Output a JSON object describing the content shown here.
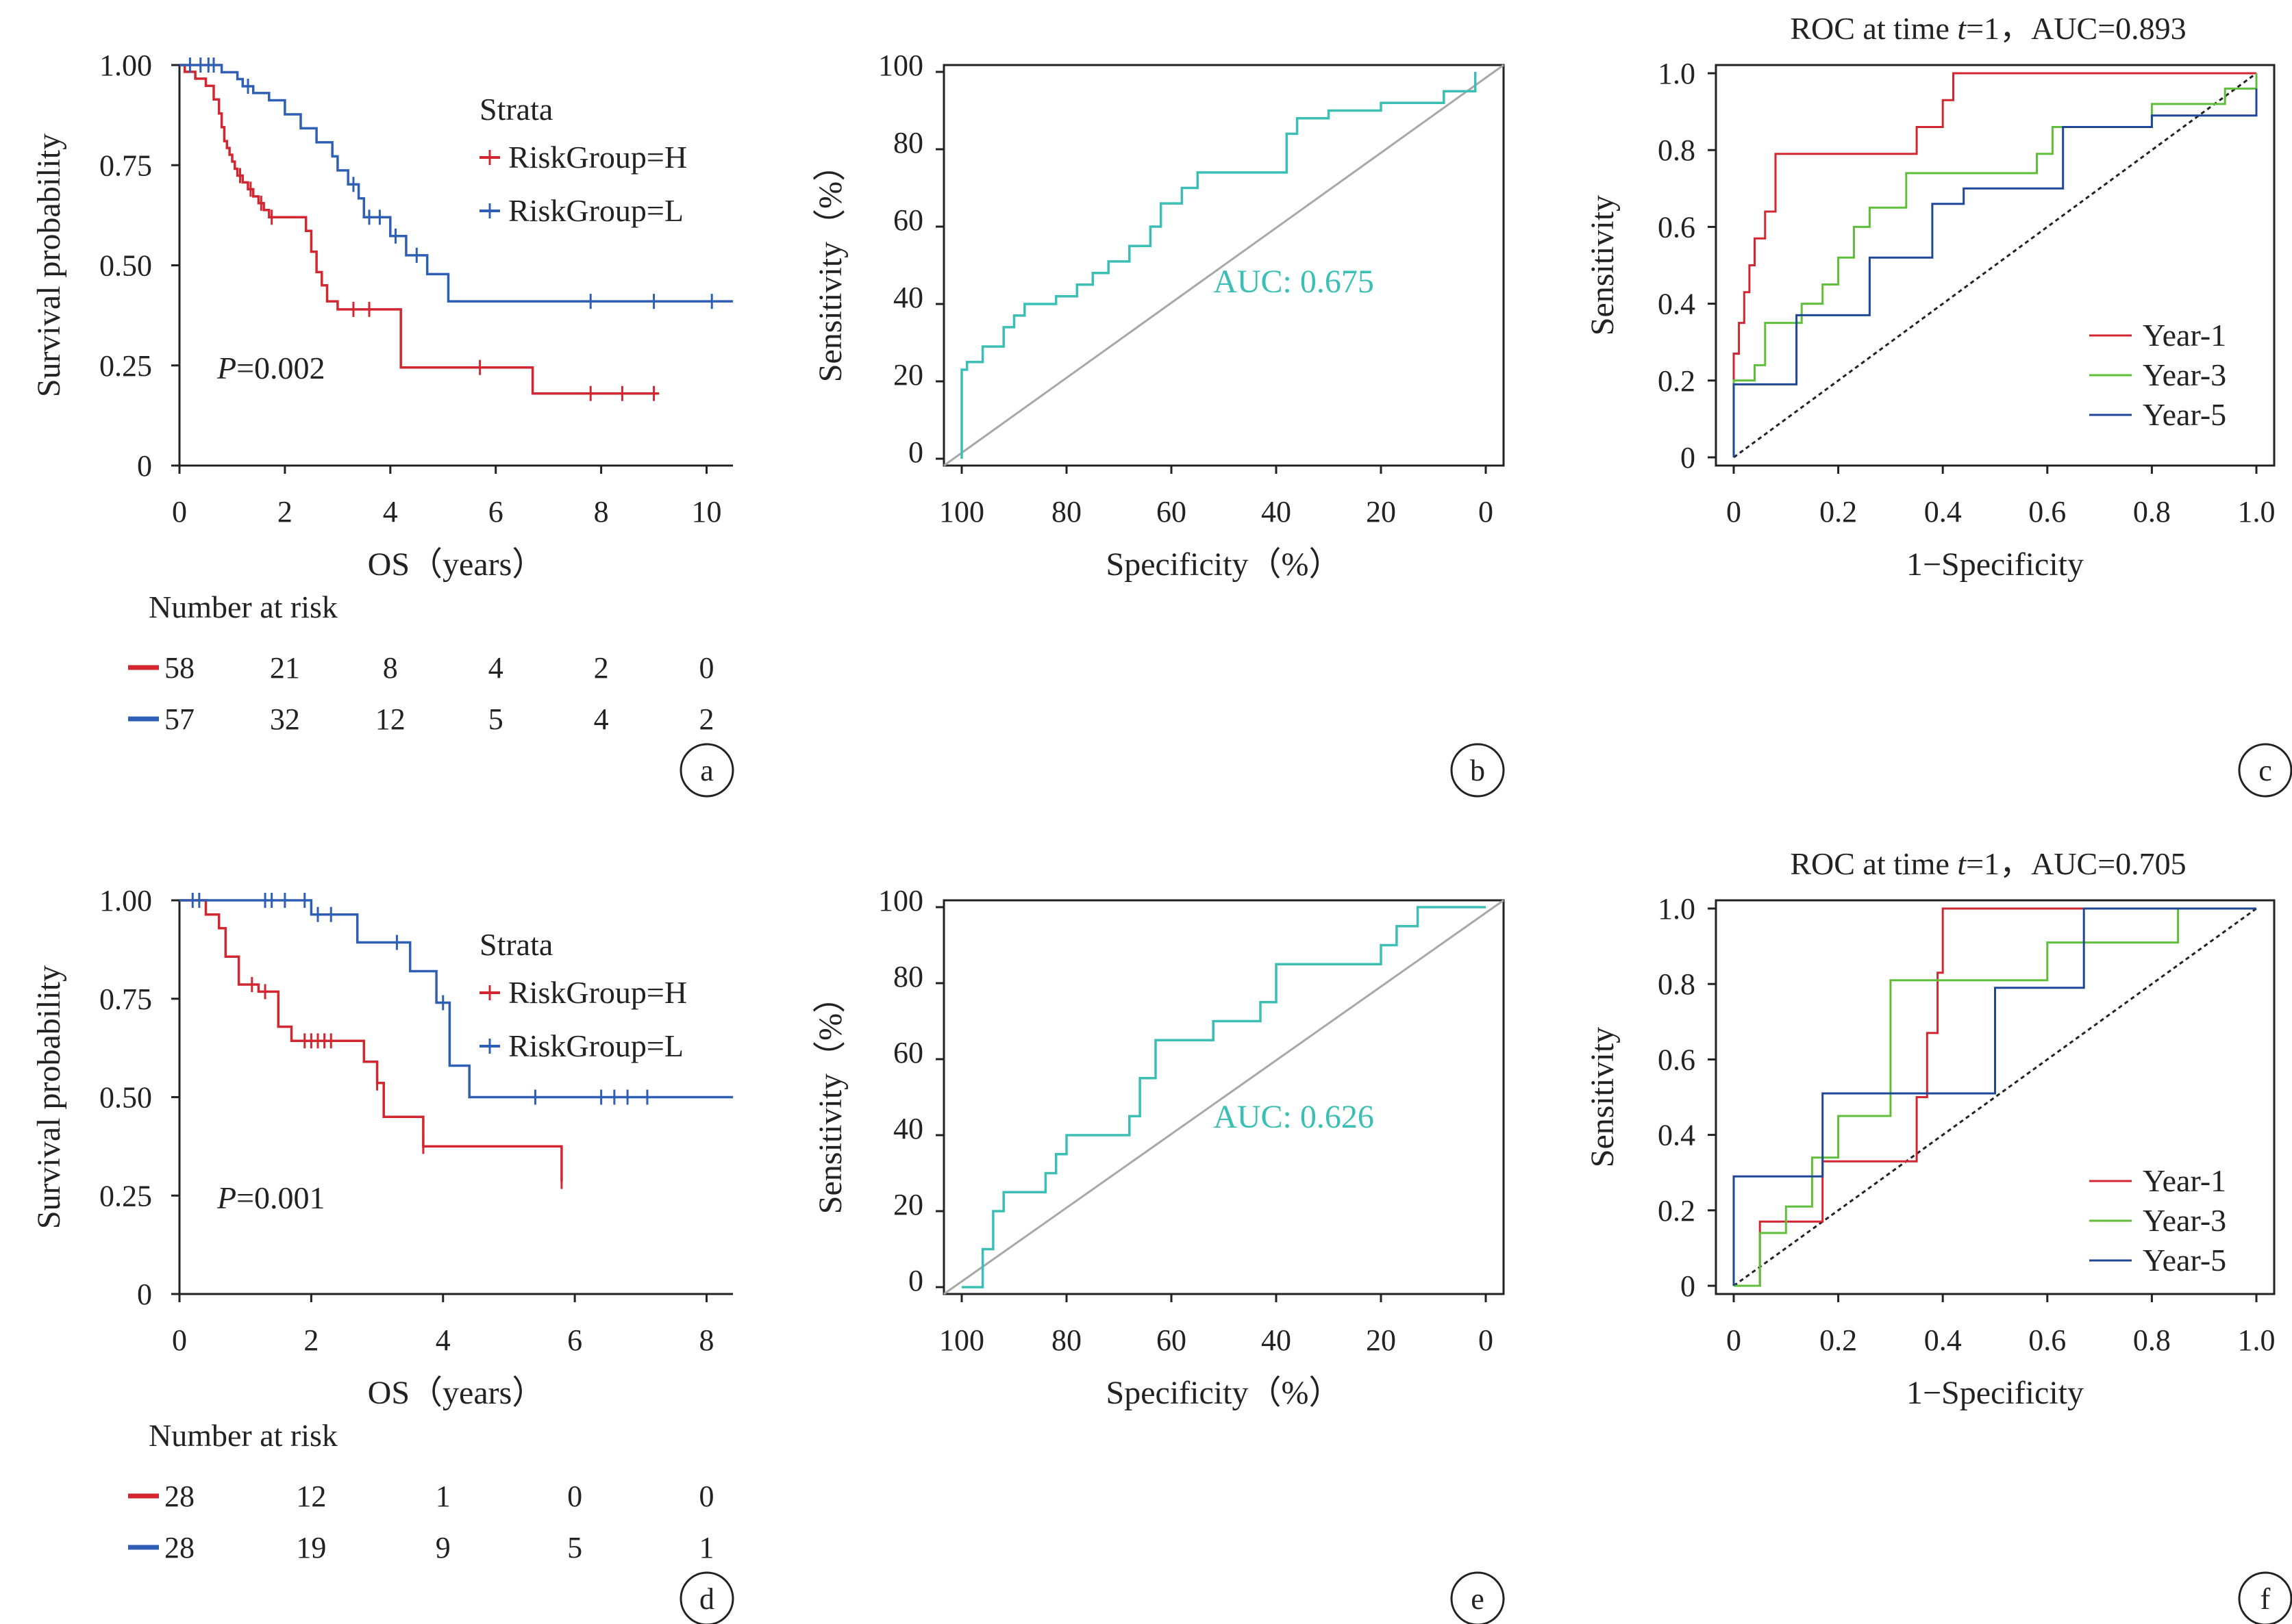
{
  "colors": {
    "high": "#d22630",
    "low": "#2e5fb4",
    "roc": "#3bbfb5",
    "diag": "#a8a8a8",
    "year1": "#d22630",
    "year3": "#5fbf3a",
    "year5": "#1f4797"
  },
  "chart_data": [
    {
      "panel": "a",
      "type": "line",
      "subtype": "kaplan-meier",
      "xlabel": "OS（years）",
      "ylabel": "Survival probability",
      "xlim": [
        0,
        10.5
      ],
      "ylim": [
        0,
        1
      ],
      "xticks": [
        0,
        2,
        4,
        6,
        8,
        10
      ],
      "yticks": [
        0,
        0.25,
        0.5,
        0.75,
        1.0
      ],
      "ytick_labels": [
        "0",
        "0.25",
        "0.50",
        "0.75",
        "1.00"
      ],
      "legend_title": "Strata",
      "pvalue": "P=0.002",
      "series": [
        {
          "name": "RiskGroup=H",
          "x": [
            0,
            0.1,
            0.3,
            0.5,
            0.65,
            0.75,
            0.8,
            0.85,
            0.9,
            0.95,
            1.0,
            1.05,
            1.1,
            1.2,
            1.3,
            1.4,
            1.5,
            1.6,
            1.7,
            1.8,
            2.0,
            2.4,
            2.5,
            2.6,
            2.7,
            2.8,
            3.0,
            3.2,
            4.2,
            6.7,
            9.1
          ],
          "y": [
            1.0,
            0.983,
            0.966,
            0.948,
            0.914,
            0.879,
            0.845,
            0.81,
            0.793,
            0.776,
            0.759,
            0.741,
            0.724,
            0.707,
            0.69,
            0.672,
            0.655,
            0.638,
            0.62,
            0.62,
            0.62,
            0.586,
            0.534,
            0.483,
            0.45,
            0.41,
            0.39,
            0.39,
            0.245,
            0.18,
            0.18
          ],
          "censor_x": [
            1.15,
            1.35,
            1.55,
            1.75,
            3.3,
            3.6,
            5.7,
            7.8,
            8.4,
            9.0
          ]
        },
        {
          "name": "RiskGroup=L",
          "x": [
            0,
            0.8,
            1.1,
            1.2,
            1.4,
            1.7,
            2.0,
            2.3,
            2.6,
            2.9,
            3.0,
            3.2,
            3.4,
            3.5,
            4.0,
            4.3,
            4.7,
            5.1,
            10.5
          ],
          "y": [
            1.0,
            0.982,
            0.965,
            0.947,
            0.93,
            0.912,
            0.877,
            0.842,
            0.807,
            0.772,
            0.737,
            0.702,
            0.667,
            0.62,
            0.573,
            0.525,
            0.478,
            0.41,
            0.41
          ],
          "censor_x": [
            0.2,
            0.4,
            0.55,
            0.65,
            1.3,
            3.3,
            3.6,
            3.8,
            4.1,
            4.5,
            7.8,
            9.0,
            10.1
          ]
        }
      ],
      "risk_table": {
        "title": "Number at risk",
        "times": [
          0,
          2,
          4,
          6,
          8,
          10
        ],
        "rows": [
          {
            "name": "H",
            "values": [
              "58",
              "21",
              "8",
              "4",
              "2",
              "0"
            ]
          },
          {
            "name": "L",
            "values": [
              "57",
              "32",
              "12",
              "5",
              "4",
              "2"
            ]
          }
        ]
      },
      "label": "a"
    },
    {
      "panel": "b",
      "type": "line",
      "subtype": "roc",
      "xlabel": "Specificity（%）",
      "ylabel": "Sensitivity（%）",
      "xlim": [
        100,
        0
      ],
      "ylim": [
        0,
        100
      ],
      "xticks": [
        100,
        80,
        60,
        40,
        20,
        0
      ],
      "yticks": [
        0,
        20,
        40,
        60,
        80,
        100
      ],
      "auc": "AUC: 0.675",
      "series": [
        {
          "name": "",
          "x": [
            100,
            100,
            99,
            99,
            96,
            96,
            92,
            92,
            90,
            90,
            88,
            88,
            82,
            82,
            78,
            78,
            75,
            75,
            72,
            72,
            68,
            68,
            64,
            64,
            62,
            62,
            58,
            58,
            55,
            55,
            38,
            38,
            36,
            36,
            30,
            30,
            20,
            20,
            8,
            8,
            2,
            2
          ],
          "y": [
            0,
            23,
            23,
            25,
            25,
            29,
            29,
            34,
            34,
            37,
            37,
            40,
            40,
            42,
            42,
            45,
            45,
            48,
            48,
            51,
            51,
            55,
            55,
            60,
            60,
            66,
            66,
            70,
            70,
            74,
            74,
            84,
            84,
            88,
            88,
            90,
            90,
            92,
            92,
            95,
            95,
            100
          ]
        }
      ],
      "label": "b"
    },
    {
      "panel": "c",
      "type": "line",
      "subtype": "time-roc",
      "title": "ROC at time t=1，AUC=0.893",
      "title_parts": [
        "ROC at time ",
        "t",
        "=1，AUC=0.893"
      ],
      "xlabel": "1−Specificity",
      "ylabel": "Sensitivity",
      "xlim": [
        0,
        1
      ],
      "ylim": [
        0,
        1
      ],
      "xticks": [
        0,
        0.2,
        0.4,
        0.6,
        0.8,
        1.0
      ],
      "xtick_labels": [
        "0",
        "0.2",
        "0.4",
        "0.6",
        "0.8",
        "1.0"
      ],
      "yticks": [
        0,
        0.2,
        0.4,
        0.6,
        0.8,
        1.0
      ],
      "ytick_labels": [
        "0",
        "0.2",
        "0.4",
        "0.6",
        "0.8",
        "1.0"
      ],
      "series": [
        {
          "name": "Year-1",
          "x": [
            0,
            0,
            0.01,
            0.01,
            0.02,
            0.02,
            0.03,
            0.03,
            0.04,
            0.04,
            0.06,
            0.06,
            0.08,
            0.08,
            0.35,
            0.35,
            0.4,
            0.4,
            0.42,
            0.42,
            1.0
          ],
          "y": [
            0,
            0.27,
            0.27,
            0.35,
            0.35,
            0.43,
            0.43,
            0.5,
            0.5,
            0.57,
            0.57,
            0.64,
            0.64,
            0.79,
            0.79,
            0.86,
            0.86,
            0.93,
            0.93,
            1.0,
            1.0
          ]
        },
        {
          "name": "Year-3",
          "x": [
            0,
            0,
            0.04,
            0.04,
            0.06,
            0.06,
            0.13,
            0.13,
            0.17,
            0.17,
            0.2,
            0.2,
            0.23,
            0.23,
            0.26,
            0.26,
            0.33,
            0.33,
            0.58,
            0.58,
            0.61,
            0.61,
            0.8,
            0.8,
            0.94,
            0.94,
            1.0,
            1.0
          ],
          "y": [
            0,
            0.2,
            0.2,
            0.24,
            0.24,
            0.35,
            0.35,
            0.4,
            0.4,
            0.45,
            0.45,
            0.52,
            0.52,
            0.6,
            0.6,
            0.65,
            0.65,
            0.74,
            0.74,
            0.79,
            0.79,
            0.86,
            0.86,
            0.92,
            0.92,
            0.96,
            0.96,
            1.0
          ]
        },
        {
          "name": "Year-5",
          "x": [
            0,
            0,
            0.12,
            0.12,
            0.26,
            0.26,
            0.38,
            0.38,
            0.44,
            0.44,
            0.63,
            0.63,
            0.8,
            0.8,
            1.0,
            1.0
          ],
          "y": [
            0,
            0.19,
            0.19,
            0.37,
            0.37,
            0.52,
            0.52,
            0.66,
            0.66,
            0.7,
            0.7,
            0.86,
            0.86,
            0.89,
            0.89,
            0.96
          ]
        }
      ],
      "label": "c"
    },
    {
      "panel": "d",
      "type": "line",
      "subtype": "kaplan-meier",
      "xlabel": "OS（years）",
      "ylabel": "Survival probability",
      "xlim": [
        0,
        8.4
      ],
      "ylim": [
        0,
        1
      ],
      "xticks": [
        0,
        2,
        4,
        6,
        8
      ],
      "yticks": [
        0,
        0.25,
        0.5,
        0.75,
        1.0
      ],
      "ytick_labels": [
        "0",
        "0.25",
        "0.50",
        "0.75",
        "1.00"
      ],
      "legend_title": "Strata",
      "pvalue": "P=0.001",
      "series": [
        {
          "name": "RiskGroup=H",
          "x": [
            0,
            0.4,
            0.6,
            0.7,
            0.9,
            1.2,
            1.5,
            1.7,
            2.4,
            2.8,
            3.0,
            3.1,
            3.7,
            5.8
          ],
          "y": [
            1.0,
            0.964,
            0.929,
            0.857,
            0.786,
            0.768,
            0.679,
            0.643,
            0.643,
            0.59,
            0.536,
            0.45,
            0.375,
            0.286
          ],
          "censor_x": [
            1.1,
            1.3,
            1.9,
            2.0,
            2.1,
            2.2,
            2.3,
            3.0,
            3.7,
            5.8
          ]
        },
        {
          "name": "RiskGroup=L",
          "x": [
            0,
            2.0,
            2.7,
            3.5,
            3.9,
            4.1,
            4.4,
            8.4
          ],
          "y": [
            1.0,
            0.964,
            0.893,
            0.82,
            0.74,
            0.58,
            0.5,
            0.5
          ],
          "censor_x": [
            0.2,
            0.3,
            1.3,
            1.4,
            1.6,
            1.9,
            2.1,
            2.3,
            3.3,
            4.0,
            5.4,
            6.4,
            6.6,
            6.8,
            7.1
          ]
        }
      ],
      "risk_table": {
        "title": "Number at risk",
        "times": [
          0,
          2,
          4,
          6,
          8
        ],
        "rows": [
          {
            "name": "H",
            "values": [
              "28",
              "12",
              "1",
              "0",
              "0"
            ]
          },
          {
            "name": "L",
            "values": [
              "28",
              "19",
              "9",
              "5",
              "1"
            ]
          }
        ]
      },
      "label": "d"
    },
    {
      "panel": "e",
      "type": "line",
      "subtype": "roc",
      "xlabel": "Specificity（%）",
      "ylabel": "Sensitivity（%）",
      "xlim": [
        100,
        0
      ],
      "ylim": [
        0,
        100
      ],
      "xticks": [
        100,
        80,
        60,
        40,
        20,
        0
      ],
      "yticks": [
        0,
        20,
        40,
        60,
        80,
        100
      ],
      "auc": "AUC: 0.626",
      "series": [
        {
          "name": "",
          "x": [
            100,
            96,
            96,
            94,
            94,
            92,
            92,
            89,
            89,
            84,
            84,
            82,
            82,
            80,
            80,
            68,
            68,
            66,
            66,
            63,
            63,
            55,
            55,
            52,
            52,
            43,
            43,
            40,
            40,
            20,
            20,
            17,
            17,
            13,
            13,
            0
          ],
          "y": [
            0,
            0,
            10,
            10,
            20,
            20,
            25,
            25,
            25,
            25,
            30,
            30,
            35,
            35,
            40,
            40,
            45,
            45,
            55,
            55,
            65,
            65,
            65,
            65,
            70,
            70,
            75,
            75,
            85,
            85,
            90,
            90,
            95,
            95,
            100,
            100
          ]
        }
      ],
      "label": "e"
    },
    {
      "panel": "f",
      "type": "line",
      "subtype": "time-roc",
      "title": "ROC at time t=1，AUC=0.705",
      "title_parts": [
        "ROC at time ",
        "t",
        "=1，AUC=0.705"
      ],
      "xlabel": "1−Specificity",
      "ylabel": "Sensitivity",
      "xlim": [
        0,
        1
      ],
      "ylim": [
        0,
        1
      ],
      "xticks": [
        0,
        0.2,
        0.4,
        0.6,
        0.8,
        1.0
      ],
      "xtick_labels": [
        "0",
        "0.2",
        "0.4",
        "0.6",
        "0.8",
        "1.0"
      ],
      "yticks": [
        0,
        0.2,
        0.4,
        0.6,
        0.8,
        1.0
      ],
      "ytick_labels": [
        "0",
        "0.2",
        "0.4",
        "0.6",
        "0.8",
        "1.0"
      ],
      "series": [
        {
          "name": "Year-1",
          "x": [
            0,
            0.05,
            0.05,
            0.17,
            0.17,
            0.35,
            0.35,
            0.37,
            0.37,
            0.39,
            0.39,
            0.4,
            0.4,
            1.0
          ],
          "y": [
            0,
            0,
            0.17,
            0.17,
            0.33,
            0.33,
            0.5,
            0.5,
            0.67,
            0.67,
            0.83,
            0.83,
            1.0,
            1.0
          ]
        },
        {
          "name": "Year-3",
          "x": [
            0,
            0.05,
            0.05,
            0.1,
            0.1,
            0.15,
            0.15,
            0.2,
            0.2,
            0.3,
            0.3,
            0.6,
            0.6,
            0.85,
            0.85,
            1.0
          ],
          "y": [
            0,
            0,
            0.14,
            0.14,
            0.21,
            0.21,
            0.34,
            0.34,
            0.45,
            0.45,
            0.81,
            0.81,
            0.91,
            0.91,
            1.0,
            1.0
          ]
        },
        {
          "name": "Year-5",
          "x": [
            0,
            0,
            0.17,
            0.17,
            0.5,
            0.5,
            0.67,
            0.67,
            1.0
          ],
          "y": [
            0,
            0.29,
            0.29,
            0.51,
            0.51,
            0.79,
            0.79,
            1.0,
            1.0
          ]
        }
      ],
      "label": "f"
    }
  ]
}
